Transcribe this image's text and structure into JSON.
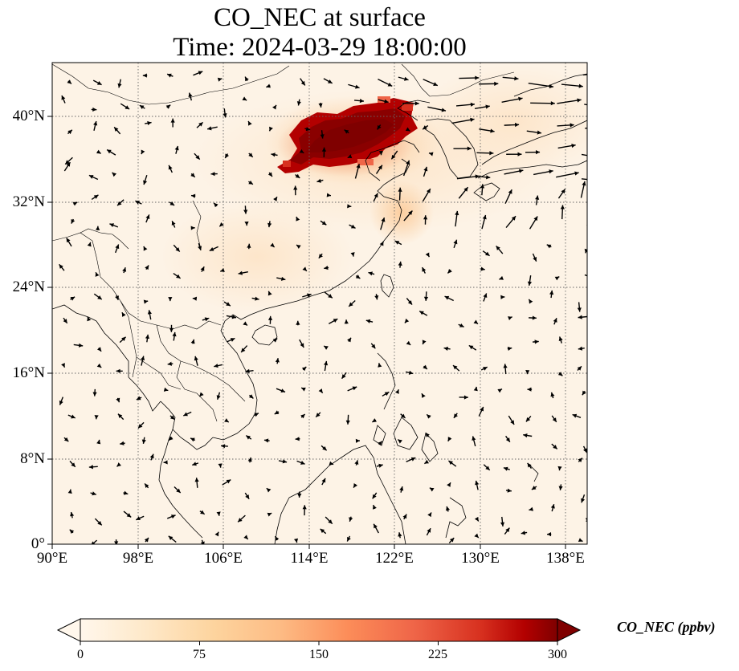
{
  "title": "CO_NEC at surface",
  "subtitle": "Time: 2024-03-29 18:00:00",
  "lon_labels": [
    "90°E",
    "98°E",
    "106°E",
    "114°E",
    "122°E",
    "130°E",
    "138°E"
  ],
  "lat_labels": [
    "0°",
    "8°N",
    "16°N",
    "24°N",
    "32°N",
    "40°N"
  ],
  "colorbar": {
    "label": "CO_NEC (ppbv)",
    "ticks": [
      "0",
      "75",
      "150",
      "225",
      "300"
    ],
    "range": [
      0,
      300
    ],
    "extend": "both",
    "colormap": "OrRd",
    "colors": [
      "#fff7ec",
      "#fee8c8",
      "#fdd49e",
      "#fdbb84",
      "#fc8d59",
      "#ef6548",
      "#d7301f",
      "#b30000",
      "#7f0000"
    ]
  },
  "map": {
    "extent": {
      "lon": [
        90,
        140
      ],
      "lat": [
        0,
        45
      ]
    },
    "gridlines": "dotted",
    "background": "#fdf3e6",
    "plume_color": "#7f0000",
    "plume_region": "North China Plain, ~110–126°E, 35–41°N",
    "wind_vectors": "black arrows"
  }
}
